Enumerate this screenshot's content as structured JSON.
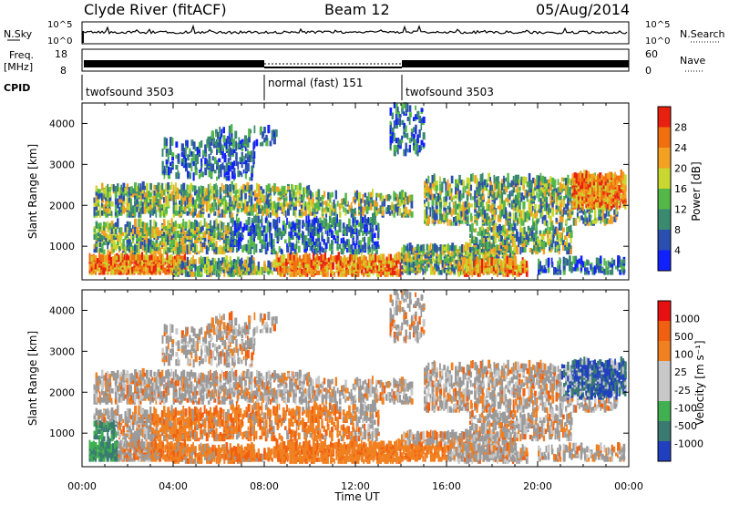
{
  "header": {
    "site": "Clyde River (fitACF)",
    "beam": "Beam 12",
    "date": "05/Aug/2014"
  },
  "status_panels": {
    "nsky_label": "N.Sky",
    "nsky_ticks": [
      "10^5",
      "10^0"
    ],
    "freq_label_1": "Freq.",
    "freq_label_2": "[MHz]",
    "freq_ticks": [
      "18",
      "8"
    ],
    "nsearch_label": "N.Search",
    "nsearch_ticks": [
      "10^5",
      "10^0"
    ],
    "nave_label": "Nave",
    "nave_ticks": [
      "60",
      "0"
    ],
    "cpid_label": "CPID"
  },
  "cpid_segments": [
    {
      "label": "twofsound 3503",
      "start_hour": 0,
      "end_hour": 8
    },
    {
      "label": "normal (fast) 151",
      "start_hour": 8,
      "end_hour": 14
    },
    {
      "label": "twofsound 3503",
      "start_hour": 14,
      "end_hour": 24
    }
  ],
  "chart_data": [
    {
      "type": "heatmap",
      "name": "power",
      "ylabel": "Slant Range [km]",
      "xlim": [
        0,
        24
      ],
      "ylim": [
        180,
        4500
      ],
      "yticks": [
        1000,
        2000,
        3000,
        4000
      ],
      "colorbar": {
        "label": "Power [dB]",
        "ticks": [
          "4",
          "8",
          "12",
          "16",
          "20",
          "24",
          "28"
        ],
        "colors": [
          "#1020ff",
          "#2a4fb0",
          "#3a8a70",
          "#54b848",
          "#c8d830",
          "#f4a020",
          "#f07010",
          "#e82010"
        ]
      }
    },
    {
      "type": "heatmap",
      "name": "velocity",
      "ylabel": "Slant Range [km]",
      "xlabel": "Time UT",
      "xlim": [
        0,
        24
      ],
      "ylim": [
        180,
        4500
      ],
      "yticks": [
        1000,
        2000,
        3000,
        4000
      ],
      "xticks": [
        "00:00",
        "04:00",
        "08:00",
        "12:00",
        "16:00",
        "20:00",
        "00:00"
      ],
      "colorbar": {
        "label": "Velocity [m s⁻¹]",
        "ticks": [
          "1000",
          "500",
          "100",
          "25",
          "-25",
          "-100",
          "-500",
          "-1000"
        ],
        "colors": [
          "#2040c0",
          "#3a7a70",
          "#40b050",
          "#c8c8c8",
          "#c8c8c8",
          "#f08020",
          "#f06010",
          "#e81010"
        ]
      },
      "ground_scatter_color": "#9a9a9a"
    }
  ]
}
